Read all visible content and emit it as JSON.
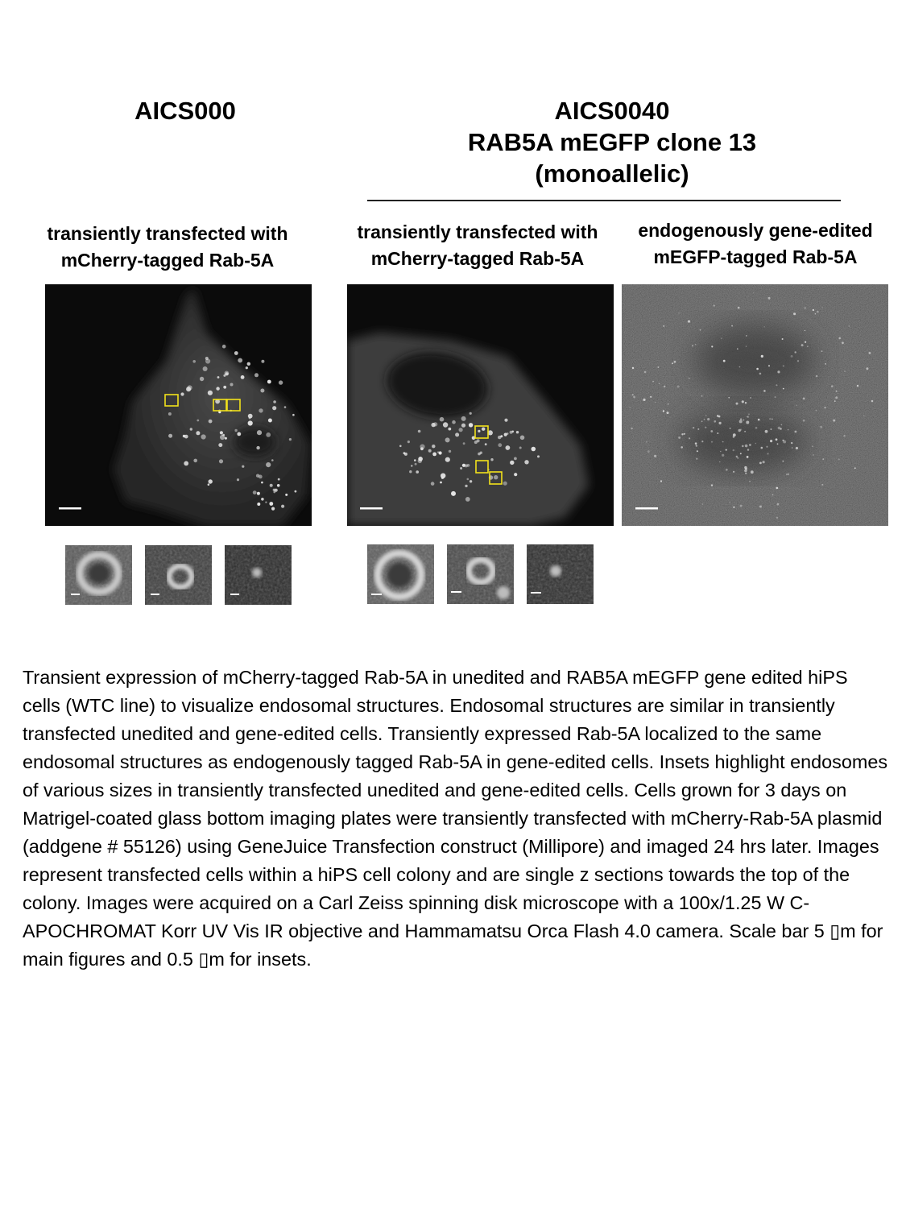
{
  "headings": {
    "left": "AICS000",
    "right_line1": "AICS0040",
    "right_line2": "RAB5A mEGFP clone 13",
    "right_line3": "(monoallelic)"
  },
  "columns": {
    "left": {
      "line1": "transiently transfected with",
      "line2": "mCherry-tagged Rab-5A"
    },
    "middle": {
      "line1": "transiently transfected with",
      "line2": "mCherry-tagged Rab-5A"
    },
    "right": {
      "line1": "endogenously gene-edited",
      "line2": "mEGFP-tagged Rab-5A"
    }
  },
  "colors": {
    "page_background": "#ffffff",
    "image_background": "#0b0b0b",
    "highlight_box": "#f2e21b",
    "scale_bar": "#ffffff"
  },
  "caption": "Transient expression of mCherry-tagged Rab-5A in unedited and RAB5A mEGFP gene edited hiPS cells (WTC line) to visualize endosomal structures. Endosomal structures are similar in transiently transfected unedited and gene-edited cells. Transiently expressed Rab-5A localized to the same endosomal structures as endogenously tagged Rab-5A in gene-edited cells. Insets highlight endosomes of various sizes in transiently transfected unedited and gene-edited cells. Cells grown for 3 days on Matrigel-coated glass bottom imaging plates were transiently transfected with mCherry-Rab-5A plasmid (addgene # 55126) using GeneJuice Transfection construct (Millipore) and imaged 24 hrs later. Images represent transfected cells within a hiPS cell colony and are single z sections towards the top of the colony. Images were acquired on a Carl Zeiss spinning disk microscope with a 100x/1.25 W C-APOCHROMAT Korr UV Vis IR objective and Hammamatsu Orca Flash 4.0 camera. Scale bar 5 ▯m for main figures and 0.5 ▯m for insets."
}
